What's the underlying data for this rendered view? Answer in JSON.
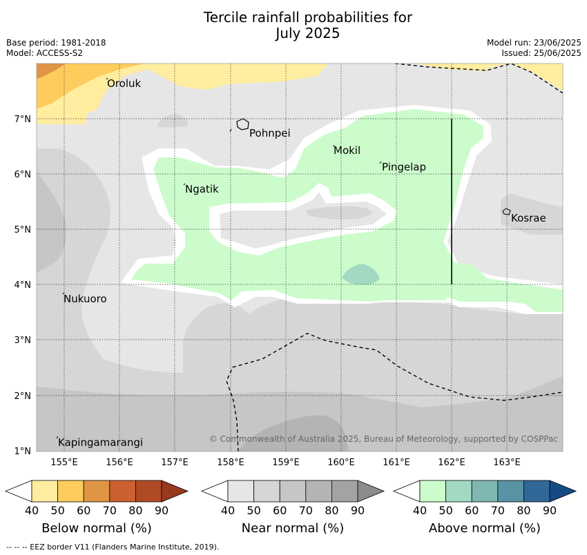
{
  "title_line1": "Tercile rainfall probabilities for",
  "title_line2": "July 2025",
  "base_period": "Base period: 1981-2018",
  "model": "Model: ACCESS-S2",
  "model_run": "Model run: 23/06/2025",
  "issued": "Issued: 25/06/2025",
  "copyright": "© Commonwealth of Australia 2025, Bureau of Meteorology, supported by COSPPac",
  "footnote": "--  --  -- EEZ border V11 (Flanders Marine Institute, 2019).",
  "places": [
    {
      "name": "Oroluk"
    },
    {
      "name": "Pohnpei"
    },
    {
      "name": "Mokil"
    },
    {
      "name": "Pingelap"
    },
    {
      "name": "Ngatik"
    },
    {
      "name": "Kosrae"
    },
    {
      "name": "Nukuoro"
    },
    {
      "name": "Kapingamarangi"
    }
  ],
  "lat_ticks": [
    "7°N",
    "6°N",
    "5°N",
    "4°N",
    "3°N",
    "2°N",
    "1°N"
  ],
  "lon_ticks": [
    "155°E",
    "156°E",
    "157°E",
    "158°E",
    "159°E",
    "160°E",
    "161°E",
    "162°E",
    "163°E"
  ],
  "colorbars": {
    "below": {
      "label": "Below normal (%)",
      "ticks": [
        "40",
        "50",
        "60",
        "70",
        "80",
        "90"
      ],
      "colors": [
        "#ffffff",
        "#ffeda0",
        "#fecc5c",
        "#e09545",
        "#cc6030",
        "#b04a25",
        "#973a20"
      ]
    },
    "near": {
      "label": "Near normal (%)",
      "ticks": [
        "40",
        "50",
        "60",
        "70",
        "80",
        "90"
      ],
      "colors": [
        "#ffffff",
        "#e6e6e6",
        "#d6d6d6",
        "#c6c6c6",
        "#b4b4b4",
        "#a3a3a3",
        "#8b8b8b"
      ]
    },
    "above": {
      "label": "Above normal (%)",
      "ticks": [
        "40",
        "50",
        "60",
        "70",
        "80",
        "90"
      ],
      "colors": [
        "#ffffff",
        "#ccfccc",
        "#a2d9c2",
        "#7fb8b0",
        "#5892a4",
        "#316898",
        "#164a84"
      ]
    }
  }
}
